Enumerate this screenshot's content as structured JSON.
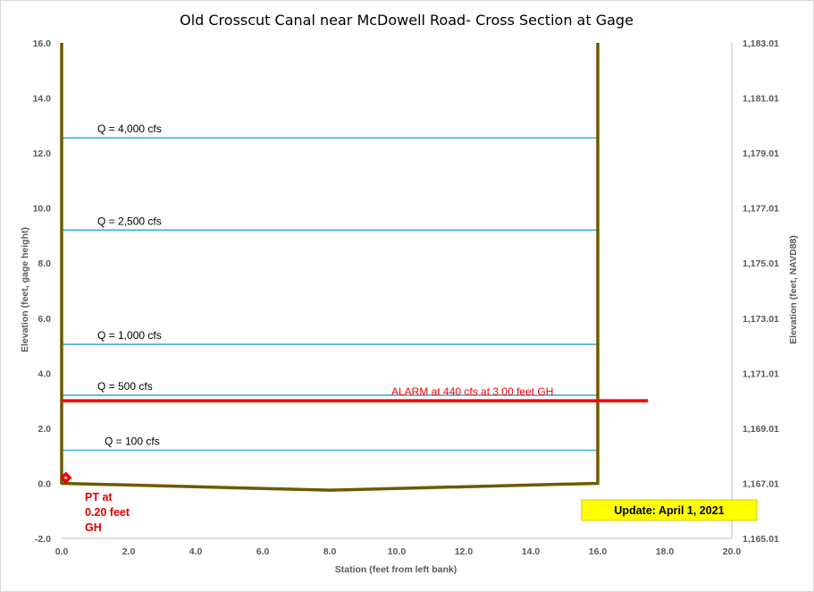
{
  "chart_data": {
    "type": "line",
    "title": "Old Crosscut Canal near McDowell Road- Cross Section at Gage",
    "xlabel": "Station (feet from left bank)",
    "ylabel": "Elevation (feet, gage height)",
    "y2label": "Elevation (feet, NAVD88)",
    "xlim": [
      0,
      20
    ],
    "ylim": [
      -2,
      16
    ],
    "x_ticks": [
      "0.0",
      "2.0",
      "4.0",
      "6.0",
      "8.0",
      "10.0",
      "12.0",
      "14.0",
      "16.0",
      "18.0",
      "20.0"
    ],
    "y_ticks": [
      "-2.0",
      "0.0",
      "2.0",
      "4.0",
      "6.0",
      "8.0",
      "10.0",
      "12.0",
      "14.0",
      "16.0"
    ],
    "y2_ticks": [
      "1,165.01",
      "1,167.01",
      "1,169.01",
      "1,171.01",
      "1,173.01",
      "1,175.01",
      "1,177.01",
      "1,179.01",
      "1,181.01",
      "1,183.01"
    ],
    "grid": false,
    "cross_section": {
      "color": "#6b5a00",
      "x": [
        0,
        0,
        8,
        16,
        16
      ],
      "y": [
        16,
        0,
        -0.25,
        0,
        16
      ]
    },
    "flow_levels": [
      {
        "label": "Q = 100  cfs",
        "y": 1.2,
        "x_start": 0,
        "x_end": 16
      },
      {
        "label": "Q = 500  cfs",
        "y": 3.2,
        "x_start": 0,
        "x_end": 16
      },
      {
        "label": "Q = 1,000  cfs",
        "y": 5.05,
        "x_start": 0,
        "x_end": 16
      },
      {
        "label": "Q = 2,500  cfs",
        "y": 9.2,
        "x_start": 0,
        "x_end": 16
      },
      {
        "label": "Q = 4,000  cfs",
        "y": 12.55,
        "x_start": 0,
        "x_end": 16
      }
    ],
    "flow_color": "#3fb0d8",
    "alarm": {
      "label": "ALARM at 440  cfs at 3.00  feet GH",
      "y": 3.0,
      "x_start": 0,
      "x_end": 17.5,
      "color": "#ff0000"
    },
    "pt": {
      "x": 0.1,
      "y": 0.2,
      "label_lines": [
        "PT at",
        "0.20 feet",
        "GH"
      ],
      "color": "#ff0000"
    },
    "update_note": {
      "text": "Update: April 1, 2021",
      "background": "#ffff00"
    }
  }
}
